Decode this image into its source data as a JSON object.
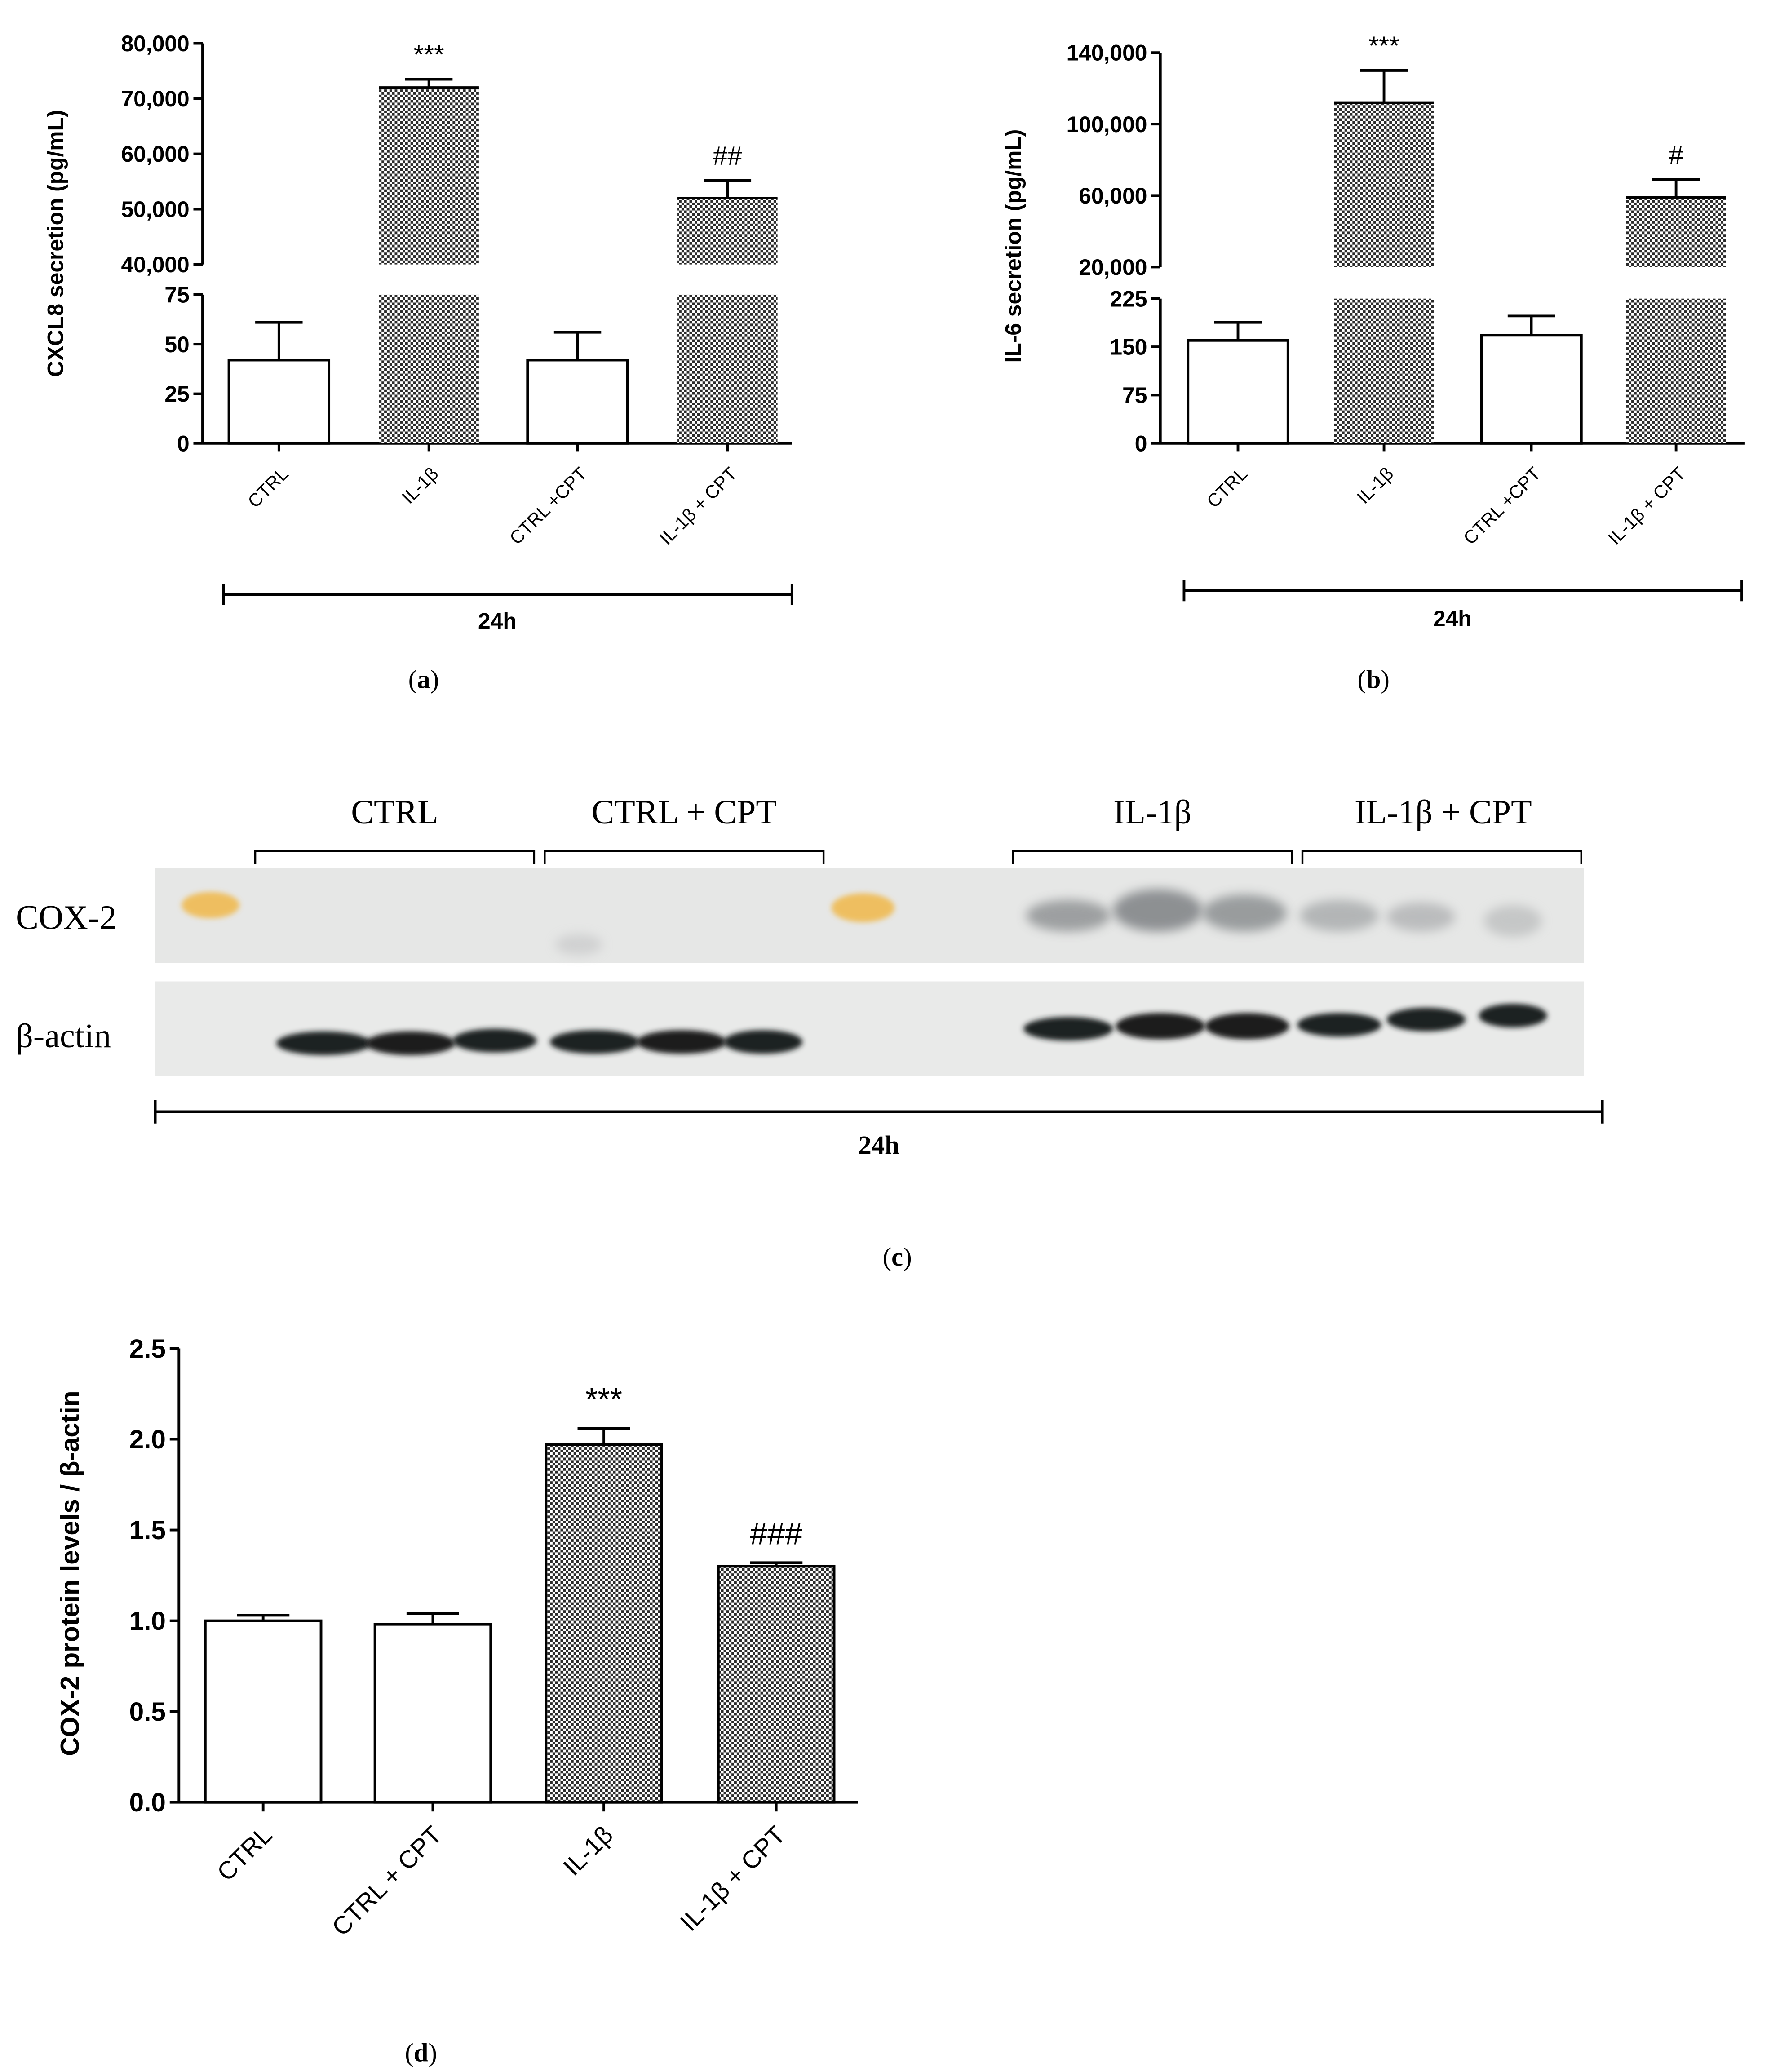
{
  "chart_data": [
    {
      "panel": "a",
      "type": "bar",
      "broken_axis": true,
      "ylabel": "CXCL8 secretion (pg/mL)",
      "group_label": "24h",
      "panel_label": "a",
      "categories": [
        "CTRL",
        "IL-1β",
        "CTRL +CPT",
        "IL-1β + CPT"
      ],
      "values": [
        42,
        72000,
        42,
        52000
      ],
      "errors": [
        19,
        1500,
        14,
        3200
      ],
      "fill": [
        "open",
        "hatched",
        "open",
        "hatched"
      ],
      "annotations": [
        "",
        "***",
        "",
        "##"
      ],
      "ylim_lower": [
        0,
        75
      ],
      "ylim_upper": [
        40000,
        80000
      ],
      "yticks_lower": [
        "0",
        "25",
        "50",
        "75"
      ],
      "yticks_upper": [
        "40,000",
        "50,000",
        "60,000",
        "70,000",
        "80,000"
      ]
    },
    {
      "panel": "b",
      "type": "bar",
      "broken_axis": true,
      "ylabel": "IL-6 secretion (pg/mL)",
      "group_label": "24h",
      "panel_label": "b",
      "categories": [
        "CTRL",
        "IL-1β",
        "CTRL +CPT",
        "IL-1β + CPT"
      ],
      "values": [
        160,
        112000,
        168,
        59000
      ],
      "errors": [
        28,
        18000,
        30,
        10000
      ],
      "fill": [
        "open",
        "hatched",
        "open",
        "hatched"
      ],
      "annotations": [
        "",
        "***",
        "",
        "#"
      ],
      "ylim_lower": [
        0,
        225
      ],
      "ylim_upper": [
        20000,
        140000
      ],
      "yticks_lower": [
        "0",
        "75",
        "150",
        "225"
      ],
      "yticks_upper": [
        "20,000",
        "60,000",
        "100,000",
        "140,000"
      ]
    },
    {
      "panel": "d",
      "type": "bar",
      "ylabel": "COX-2 protein levels / β-actin",
      "panel_label": "d",
      "categories": [
        "CTRL",
        "CTRL + CPT",
        "IL-1β",
        "IL-1β + CPT"
      ],
      "values": [
        1.0,
        0.98,
        1.97,
        1.3
      ],
      "errors": [
        0.03,
        0.06,
        0.09,
        0.02
      ],
      "fill": [
        "open",
        "open",
        "hatched",
        "hatched"
      ],
      "annotations": [
        "",
        "",
        "***",
        "###"
      ],
      "ylim": [
        0,
        2.5
      ],
      "yticks": [
        "0.0",
        "0.5",
        "1.0",
        "1.5",
        "2.0",
        "2.5"
      ]
    }
  ],
  "blot": {
    "panel_label": "c",
    "group_labels": [
      "CTRL",
      "CTRL + CPT",
      "IL-1β",
      "IL-1β + CPT"
    ],
    "row_labels": [
      "COX-2",
      "β-actin"
    ],
    "time_label": "24h"
  }
}
